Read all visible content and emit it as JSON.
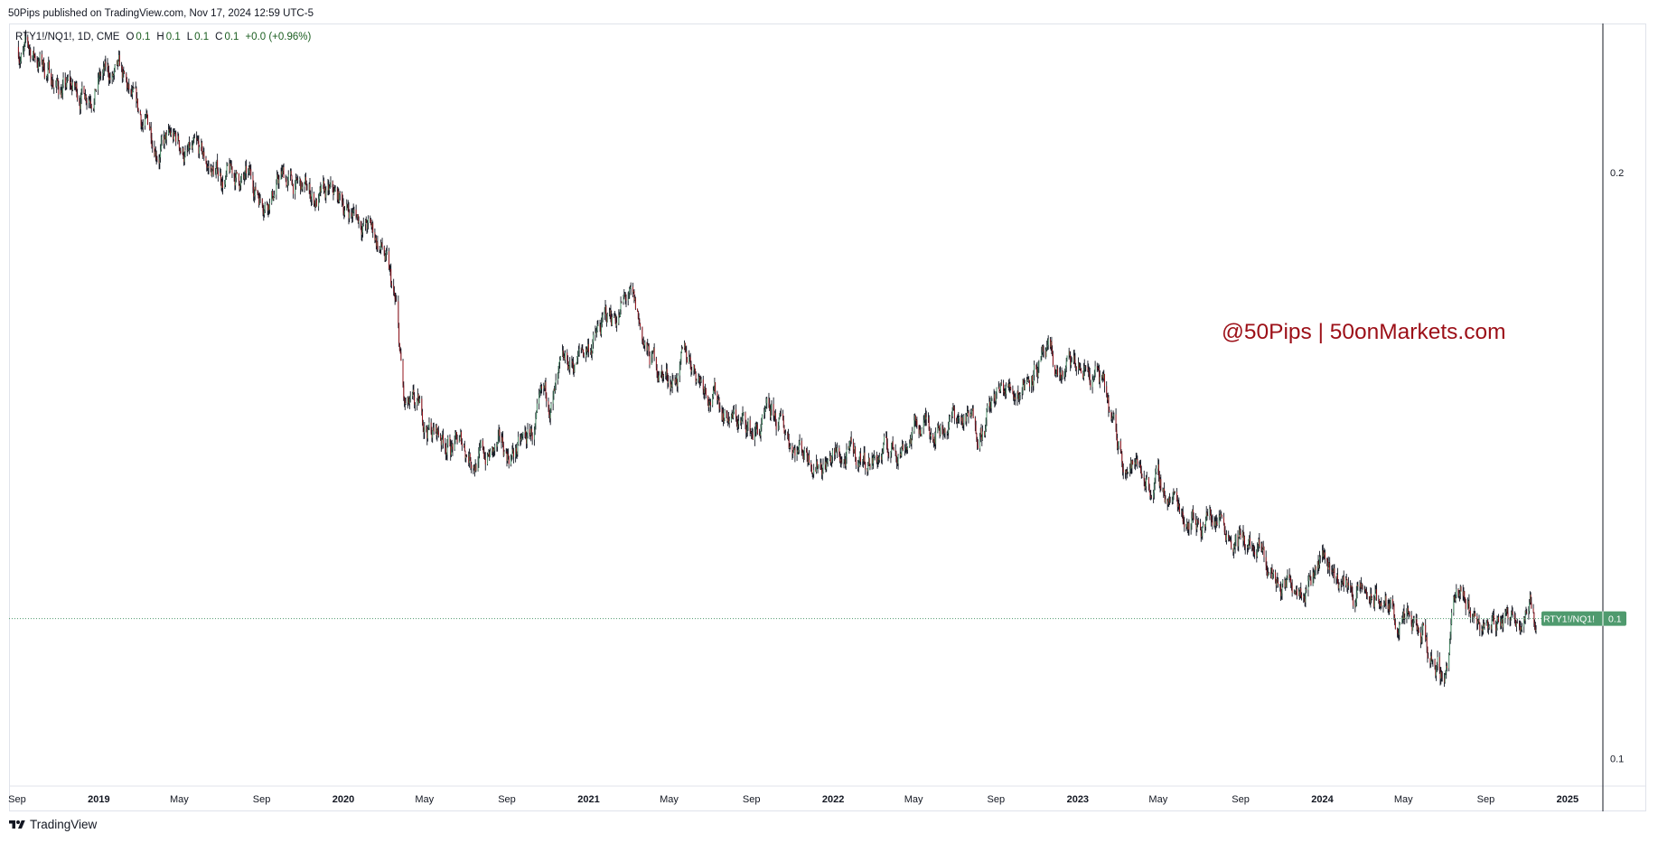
{
  "publish_line": "50Pips published on TradingView.com, Nov 17, 2024 12:59 UTC-5",
  "legend": {
    "symbol_line": "RTY1!/NQ1!, 1D, CME",
    "open_label": "O",
    "open_value": "0.1",
    "high_label": "H",
    "high_value": "0.1",
    "low_label": "L",
    "low_value": "0.1",
    "close_label": "C",
    "close_value": "0.1",
    "change": "+0.0 (+0.96%)"
  },
  "watermark": "@50Pips | 50onMarkets.com",
  "price_tag": {
    "symbol": "RTY1!/NQ1!",
    "value": "0.1",
    "color": "#4f9a6e"
  },
  "footer": {
    "brand": "TradingView",
    "logo_icon": "tradingview-logo-icon"
  },
  "colors": {
    "up": "#4f9a6e",
    "down": "#9c0f17",
    "wick": "#131722",
    "price_line": "#4f9a6e",
    "watermark": "#9c0f17"
  },
  "chart_data": {
    "type": "line",
    "title": "",
    "xlabel": "",
    "ylabel": "",
    "y_scale": "log",
    "grid": false,
    "x_tick_labels": [
      "Sep",
      "2019",
      "May",
      "Sep",
      "2020",
      "May",
      "Sep",
      "2021",
      "May",
      "Sep",
      "2022",
      "May",
      "Sep",
      "2023",
      "May",
      "Sep",
      "2024",
      "May",
      "Sep",
      "2025"
    ],
    "y_tick_labels": [
      "0.2",
      "0.1"
    ],
    "ylim": [
      0.097,
      0.238
    ],
    "last_value": 0.118,
    "series": [
      {
        "x": [
          "2018-09-01",
          "2018-10-01",
          "2018-11-01",
          "2018-12-01",
          "2019-01-01",
          "2019-02-01",
          "2019-03-01",
          "2019-04-01",
          "2019-05-01",
          "2019-06-01",
          "2019-07-01",
          "2019-08-01",
          "2019-09-01",
          "2019-10-01",
          "2019-11-01",
          "2019-12-01",
          "2020-01-01",
          "2020-02-01",
          "2020-03-01",
          "2020-03-20",
          "2020-04-01",
          "2020-05-01",
          "2020-06-01",
          "2020-07-01",
          "2020-08-01",
          "2020-09-01",
          "2020-10-01",
          "2020-11-01",
          "2020-12-01",
          "2021-01-01",
          "2021-02-01",
          "2021-03-01",
          "2021-04-01",
          "2021-05-01",
          "2021-06-01",
          "2021-07-01",
          "2021-08-01",
          "2021-09-01",
          "2021-10-01",
          "2021-11-01",
          "2021-12-01",
          "2022-01-01",
          "2022-02-01",
          "2022-03-01",
          "2022-04-01",
          "2022-05-01",
          "2022-06-01",
          "2022-07-01",
          "2022-08-01",
          "2022-09-01",
          "2022-10-01",
          "2022-11-01",
          "2022-12-01",
          "2023-01-01",
          "2023-02-01",
          "2023-03-01",
          "2023-04-01",
          "2023-05-01",
          "2023-06-01",
          "2023-07-01",
          "2023-08-01",
          "2023-09-01",
          "2023-10-01",
          "2023-11-01",
          "2023-12-01",
          "2024-01-01",
          "2024-02-01",
          "2024-03-01",
          "2024-04-01",
          "2024-05-01",
          "2024-06-01",
          "2024-07-01",
          "2024-07-15",
          "2024-08-01",
          "2024-09-01",
          "2024-10-01",
          "2024-11-01",
          "2024-11-15"
        ],
        "y": [
          0.232,
          0.229,
          0.222,
          0.219,
          0.225,
          0.222,
          0.211,
          0.208,
          0.206,
          0.201,
          0.199,
          0.198,
          0.195,
          0.199,
          0.195,
          0.193,
          0.192,
          0.189,
          0.182,
          0.168,
          0.15,
          0.148,
          0.146,
          0.144,
          0.143,
          0.143,
          0.145,
          0.151,
          0.157,
          0.163,
          0.168,
          0.172,
          0.16,
          0.157,
          0.16,
          0.156,
          0.15,
          0.147,
          0.148,
          0.146,
          0.144,
          0.143,
          0.142,
          0.143,
          0.144,
          0.148,
          0.149,
          0.15,
          0.148,
          0.153,
          0.155,
          0.161,
          0.157,
          0.158,
          0.157,
          0.144,
          0.141,
          0.138,
          0.135,
          0.133,
          0.134,
          0.13,
          0.126,
          0.122,
          0.125,
          0.128,
          0.123,
          0.121,
          0.12,
          0.117,
          0.114,
          0.11,
          0.121,
          0.119,
          0.117,
          0.118,
          0.121,
          0.118
        ]
      }
    ]
  }
}
